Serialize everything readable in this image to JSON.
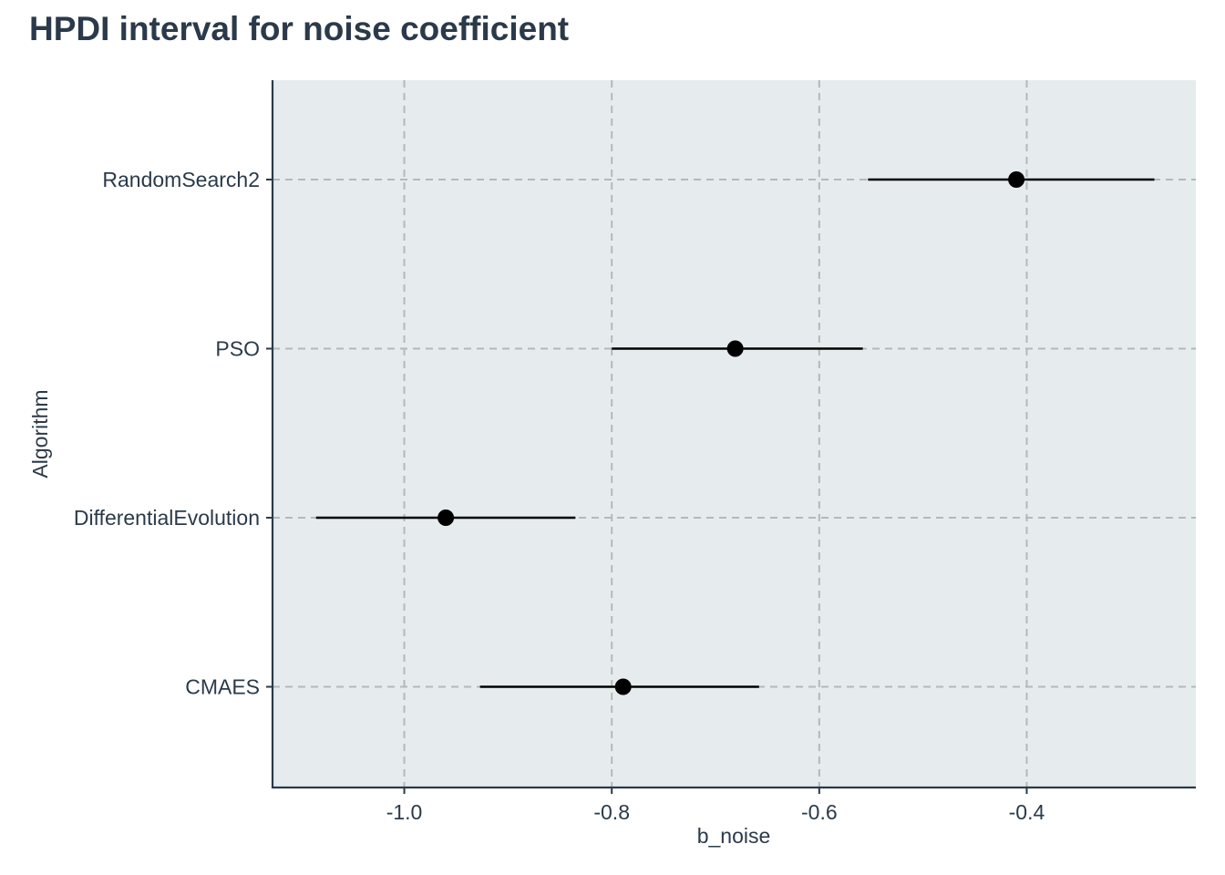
{
  "chart_data": {
    "type": "scatter",
    "title": "HPDI interval for noise coefficient",
    "xlabel": "b_noise",
    "ylabel": "Algorithm",
    "xlim": [
      -1.127,
      -0.237
    ],
    "xticks": [
      -1.0,
      -0.8,
      -0.6,
      -0.4
    ],
    "xtick_labels": [
      "-1.0",
      "-0.8",
      "-0.6",
      "-0.4"
    ],
    "grid": true,
    "categories": [
      "RandomSearch2",
      "PSO",
      "DifferentialEvolution",
      "CMAES"
    ],
    "series": [
      {
        "points": [
          {
            "category": "RandomSearch2",
            "estimate": -0.41,
            "lower": -0.553,
            "upper": -0.277
          },
          {
            "category": "PSO",
            "estimate": -0.681,
            "lower": -0.8,
            "upper": -0.558
          },
          {
            "category": "DifferentialEvolution",
            "estimate": -0.96,
            "lower": -1.085,
            "upper": -0.835
          },
          {
            "category": "CMAES",
            "estimate": -0.789,
            "lower": -0.927,
            "upper": -0.658
          }
        ]
      }
    ],
    "colors": {
      "panel_background": "#e6eced",
      "grid": "#b4b8ba",
      "axis": "#2b3a4a",
      "marks": "#000000"
    }
  }
}
